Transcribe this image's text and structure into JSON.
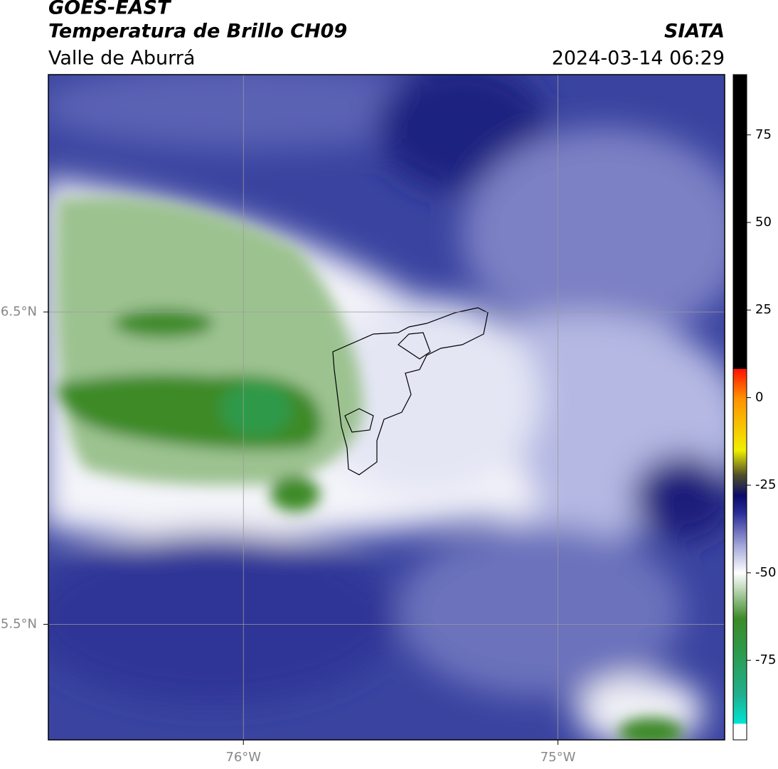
{
  "header": {
    "title": "GOES-EAST",
    "subtitle": "Temperatura de Brillo CH09",
    "region": "Valle de Aburrá",
    "source": "SIATA",
    "datetime": "2024-03-14 06:29"
  },
  "map": {
    "xlim": [
      -76.62,
      -74.47
    ],
    "ylim": [
      5.13,
      7.26
    ],
    "xticks": [
      {
        "value": -76,
        "label": "76°W"
      },
      {
        "value": -75,
        "label": "75°W"
      }
    ],
    "yticks": [
      {
        "value": 6.5,
        "label": "6.5°N"
      },
      {
        "value": 5.5,
        "label": "5.5°N"
      }
    ],
    "grid": true
  },
  "colorbar": {
    "lim": [
      -97.7,
      92.2
    ],
    "ticks": [
      75,
      50,
      25,
      0,
      -25,
      -50,
      -75
    ],
    "stops": [
      {
        "value": -97.7,
        "color": "#ffffff"
      },
      {
        "value": -93,
        "color": "#ffffff"
      },
      {
        "value": -93,
        "color": "#00e5d5"
      },
      {
        "value": -85,
        "color": "#20b090"
      },
      {
        "value": -72,
        "color": "#2e9a48"
      },
      {
        "value": -63,
        "color": "#3c8a28"
      },
      {
        "value": -55,
        "color": "#b8d4b0"
      },
      {
        "value": -50,
        "color": "#ffffff"
      },
      {
        "value": -42,
        "color": "#a0a4d8"
      },
      {
        "value": -33,
        "color": "#2a2e98"
      },
      {
        "value": -28,
        "color": "#0a0a6a"
      },
      {
        "value": -22,
        "color": "#505028"
      },
      {
        "value": -15,
        "color": "#f0f000"
      },
      {
        "value": 0,
        "color": "#ff9000"
      },
      {
        "value": 8.3,
        "color": "#ff1000"
      },
      {
        "value": 8.3,
        "color": "#000000"
      },
      {
        "value": 92.2,
        "color": "#000000"
      }
    ]
  }
}
